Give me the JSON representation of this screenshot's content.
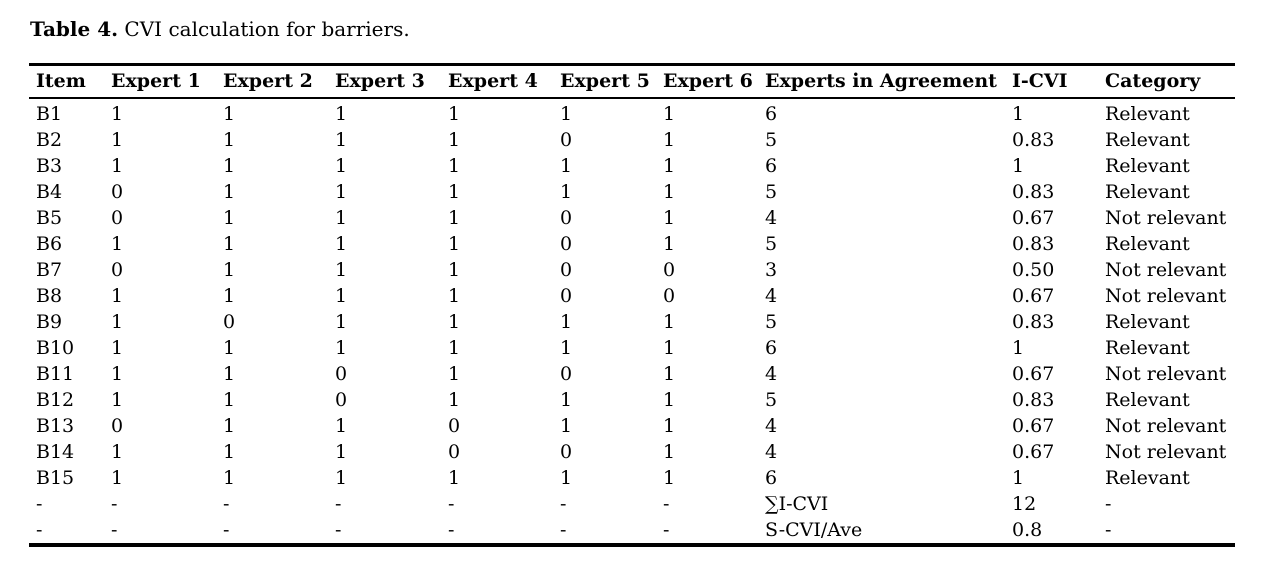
{
  "caption": {
    "label": "Table 4.",
    "text": " CVI calculation for barriers."
  },
  "table": {
    "columns": [
      "Item",
      "Expert 1",
      "Expert 2",
      "Expert 3",
      "Expert 4",
      "Expert 5",
      "Expert 6",
      "Experts in Agreement",
      "I-CVI",
      "Category"
    ],
    "rows": [
      [
        "B1",
        "1",
        "1",
        "1",
        "1",
        "1",
        "1",
        "6",
        "1",
        "Relevant"
      ],
      [
        "B2",
        "1",
        "1",
        "1",
        "1",
        "0",
        "1",
        "5",
        "0.83",
        "Relevant"
      ],
      [
        "B3",
        "1",
        "1",
        "1",
        "1",
        "1",
        "1",
        "6",
        "1",
        "Relevant"
      ],
      [
        "B4",
        "0",
        "1",
        "1",
        "1",
        "1",
        "1",
        "5",
        "0.83",
        "Relevant"
      ],
      [
        "B5",
        "0",
        "1",
        "1",
        "1",
        "0",
        "1",
        "4",
        "0.67",
        "Not relevant"
      ],
      [
        "B6",
        "1",
        "1",
        "1",
        "1",
        "0",
        "1",
        "5",
        "0.83",
        "Relevant"
      ],
      [
        "B7",
        "0",
        "1",
        "1",
        "1",
        "0",
        "0",
        "3",
        "0.50",
        "Not relevant"
      ],
      [
        "B8",
        "1",
        "1",
        "1",
        "1",
        "0",
        "0",
        "4",
        "0.67",
        "Not relevant"
      ],
      [
        "B9",
        "1",
        "0",
        "1",
        "1",
        "1",
        "1",
        "5",
        "0.83",
        "Relevant"
      ],
      [
        "B10",
        "1",
        "1",
        "1",
        "1",
        "1",
        "1",
        "6",
        "1",
        "Relevant"
      ],
      [
        "B11",
        "1",
        "1",
        "0",
        "1",
        "0",
        "1",
        "4",
        "0.67",
        "Not relevant"
      ],
      [
        "B12",
        "1",
        "1",
        "0",
        "1",
        "1",
        "1",
        "5",
        "0.83",
        "Relevant"
      ],
      [
        "B13",
        "0",
        "1",
        "1",
        "0",
        "1",
        "1",
        "4",
        "0.67",
        "Not relevant"
      ],
      [
        "B14",
        "1",
        "1",
        "1",
        "0",
        "0",
        "1",
        "4",
        "0.67",
        "Not relevant"
      ],
      [
        "B15",
        "1",
        "1",
        "1",
        "1",
        "1",
        "1",
        "6",
        "1",
        "Relevant"
      ],
      [
        "-",
        "-",
        "-",
        "-",
        "-",
        "-",
        "-",
        "∑I-CVI",
        "12",
        "-"
      ],
      [
        "-",
        "-",
        "-",
        "-",
        "-",
        "-",
        "-",
        "S-CVI/Ave",
        "0.8",
        "-"
      ]
    ]
  },
  "chart_data": {
    "type": "table",
    "title": "Table 4. CVI calculation for barriers.",
    "columns": [
      "Item",
      "Expert 1",
      "Expert 2",
      "Expert 3",
      "Expert 4",
      "Expert 5",
      "Expert 6",
      "Experts in Agreement",
      "I-CVI",
      "Category"
    ],
    "summary": {
      "sum_i_cvi": "12",
      "s_cvi_ave": "0.8"
    }
  }
}
